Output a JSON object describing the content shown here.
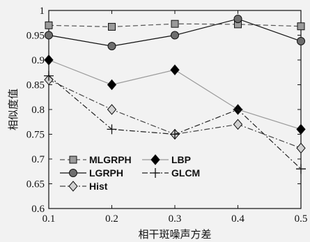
{
  "chart_data": {
    "type": "line",
    "xlabel": "相干斑噪声方差",
    "ylabel": "相似度值",
    "x": [
      0.1,
      0.2,
      0.3,
      0.4,
      0.5
    ],
    "xlim": [
      0.1,
      0.5
    ],
    "ylim": [
      0.6,
      1.0
    ],
    "x_ticks": [
      "0.1",
      "0.2",
      "0.3",
      "0.4",
      "0.5"
    ],
    "y_ticks": [
      "0.6",
      "0.65",
      "0.7",
      "0.75",
      "0.8",
      "0.85",
      "0.9",
      "0.95",
      "1"
    ],
    "grid": false,
    "legend_position": "bottom-left",
    "series": [
      {
        "name": "MLGRPH",
        "values": [
          0.97,
          0.967,
          0.973,
          0.972,
          0.968
        ],
        "color": "#555555",
        "marker": "square",
        "dash": "dashed",
        "marker_fill": "#9a9a9a"
      },
      {
        "name": "LGRPH",
        "values": [
          0.95,
          0.928,
          0.95,
          0.983,
          0.938
        ],
        "color": "#111111",
        "marker": "circle",
        "dash": "solid",
        "marker_fill": "#6e6e6e"
      },
      {
        "name": "Hist",
        "values": [
          0.86,
          0.8,
          0.75,
          0.77,
          0.722
        ],
        "color": "#444444",
        "marker": "diamond",
        "dash": "dashdot",
        "marker_fill": "#d0d0d0"
      },
      {
        "name": "LBP",
        "values": [
          0.9,
          0.85,
          0.88,
          0.8,
          0.76
        ],
        "color": "#999999",
        "marker": "diamond",
        "dash": "solid",
        "marker_fill": "#000000"
      },
      {
        "name": "GLCM",
        "values": [
          0.868,
          0.76,
          0.75,
          0.8,
          0.68
        ],
        "color": "#222222",
        "marker": "plus",
        "dash": "dashdot",
        "marker_fill": "none"
      }
    ]
  }
}
